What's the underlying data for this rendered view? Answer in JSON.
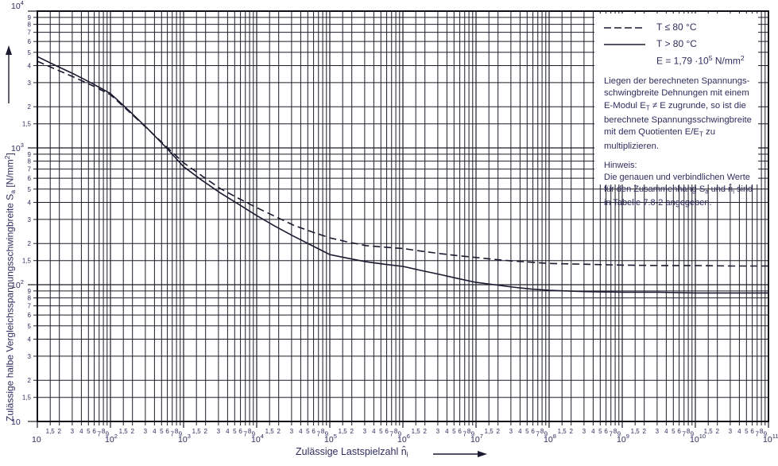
{
  "chart_data": {
    "type": "line",
    "title": "",
    "xlabel": "Zulässige Lastspielzahl n̂i",
    "ylabel": "Zulässige halbe Vergleichsspannungsschwingbreite Sa [N/mm2]",
    "x_scale": "log",
    "y_scale": "log",
    "xlim": [
      10,
      100000000000
    ],
    "ylim": [
      10,
      10000
    ],
    "grid": "full-log-log",
    "legend_position": "top-right",
    "series": [
      {
        "name": "T ≤ 80 °C",
        "style": "dashed",
        "points_logx_y": [
          [
            1,
            4300
          ],
          [
            1.25,
            3760
          ],
          [
            1.5,
            3290
          ],
          [
            1.75,
            2860
          ],
          [
            2,
            2450
          ],
          [
            2.25,
            1850
          ],
          [
            2.5,
            1390
          ],
          [
            2.75,
            1040
          ],
          [
            3,
            780
          ],
          [
            3.25,
            625
          ],
          [
            3.5,
            505
          ],
          [
            3.75,
            428
          ],
          [
            4,
            366
          ],
          [
            4.25,
            316
          ],
          [
            4.5,
            273
          ],
          [
            4.75,
            244
          ],
          [
            5,
            220
          ],
          [
            5.25,
            205
          ],
          [
            5.5,
            193
          ],
          [
            5.75,
            188
          ],
          [
            6,
            184
          ],
          [
            6.25,
            176
          ],
          [
            6.5,
            169
          ],
          [
            6.75,
            163
          ],
          [
            7,
            158
          ],
          [
            7.25,
            153
          ],
          [
            7.5,
            149
          ],
          [
            7.75,
            146
          ],
          [
            8,
            143
          ],
          [
            8.25,
            142
          ],
          [
            8.5,
            141
          ],
          [
            9,
            139
          ],
          [
            9.5,
            138
          ],
          [
            10,
            138
          ],
          [
            10.5,
            137
          ],
          [
            11,
            137
          ]
        ]
      },
      {
        "name": "T > 80 °C",
        "style": "solid",
        "points_logx_y": [
          [
            1,
            4650
          ],
          [
            1.25,
            4000
          ],
          [
            1.5,
            3470
          ],
          [
            1.75,
            2960
          ],
          [
            2,
            2500
          ],
          [
            2.25,
            1880
          ],
          [
            2.5,
            1400
          ],
          [
            2.75,
            1020
          ],
          [
            3,
            730
          ],
          [
            3.25,
            580
          ],
          [
            3.5,
            470
          ],
          [
            3.75,
            388
          ],
          [
            4,
            320
          ],
          [
            4.25,
            268
          ],
          [
            4.5,
            227
          ],
          [
            4.75,
            194
          ],
          [
            5,
            166
          ],
          [
            5.25,
            156
          ],
          [
            5.5,
            147
          ],
          [
            5.75,
            141
          ],
          [
            6,
            136
          ],
          [
            6.25,
            127
          ],
          [
            6.5,
            119
          ],
          [
            6.75,
            111
          ],
          [
            7,
            104
          ],
          [
            7.25,
            100
          ],
          [
            7.5,
            96
          ],
          [
            7.75,
            93
          ],
          [
            8,
            91
          ],
          [
            8.25,
            90
          ],
          [
            8.5,
            89
          ],
          [
            9,
            88
          ],
          [
            9.5,
            88
          ],
          [
            10,
            87
          ],
          [
            10.5,
            87
          ],
          [
            11,
            87
          ]
        ]
      }
    ],
    "annotation": "E = 1,79·10^5 N/mm^2"
  },
  "axes": {
    "x_decade_exponents": [
      1,
      2,
      3,
      4,
      5,
      6,
      7,
      8,
      9,
      10,
      11
    ],
    "y_decade_exponents": [
      1,
      2,
      3,
      4
    ],
    "minor_values": [
      1.5,
      2,
      3,
      4,
      5,
      6,
      7,
      8,
      9
    ],
    "minor_labels": [
      "1,5",
      "2",
      "3",
      "4",
      "5",
      "6",
      "7",
      "8",
      "9"
    ],
    "decade_base": "10"
  },
  "x_title": {
    "pre": "Zulässige Lastspielzahl  ",
    "sym": "n̂",
    "sub": "i"
  },
  "y_title": {
    "pre": "Zulässige halbe Vergleichsspannungsschwingbreite  ",
    "sym": "S",
    "sub": "a",
    "unit_pre": "  [N/mm",
    "unit_sup": "2",
    "unit_post": "]"
  },
  "legend": {
    "row1_label": "T ≤ 80 °C",
    "row2_label": "T > 80 °C",
    "eq_pre": "E = 1,79 ·10",
    "eq_sup": "5",
    "eq_mid": " N/mm",
    "eq_sup2": "2",
    "para_p1": "Liegen der berechneten Spannungs­schwingbreite Dehnungen mit einem E-Modul E",
    "para_sub1": "T",
    "para_p2": " ≠ E zugrunde, so ist die berechnete Spannungsschwingbreite mit dem Quotienten E/E",
    "para_sub2": "T",
    "para_p3": " zu multiplizieren.",
    "note_title": "Hinweis:",
    "note_p1": "Die genauen und verbindlichen Werte für den Zusammenhang  S",
    "note_sub1": "a",
    "note_p2": " und  n̂",
    "note_sub2": "i",
    "note_p3": " sind in Tabelle 7.8-2 angegeben."
  },
  "colors": {
    "background": "#ffffff",
    "grid": "#1c1c28",
    "frame": "#101018",
    "curve": "#1a1a30",
    "text": "#2e2e5e"
  }
}
